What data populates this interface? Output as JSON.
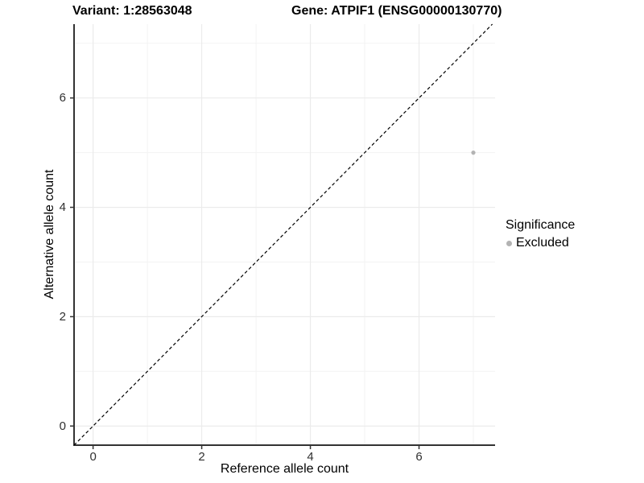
{
  "header": {
    "variant_title": "Variant: 1:28563048",
    "gene_title": "Gene: ATPIF1 (ENSG00000130770)"
  },
  "chart_data": {
    "type": "scatter",
    "title": "Variant: 1:28563048    Gene: ATPIF1 (ENSG00000130770)",
    "xlabel": "Reference allele count",
    "ylabel": "Alternative allele count",
    "xlim": [
      -0.35,
      7.4
    ],
    "ylim": [
      -0.35,
      7.35
    ],
    "x_major_ticks": [
      0,
      2,
      4,
      6
    ],
    "x_minor_ticks": [
      1,
      3,
      5,
      7
    ],
    "y_major_ticks": [
      0,
      2,
      4,
      6
    ],
    "y_minor_ticks": [
      1,
      3,
      5,
      7
    ],
    "grid": "major+minor",
    "series": [
      {
        "name": "Excluded",
        "color": "#b3b3b3",
        "marker_radius": 2.6,
        "points": [
          [
            7,
            5
          ]
        ]
      }
    ],
    "reference_line": {
      "type": "identity y=x",
      "dash": "dashed",
      "color": "#000000"
    },
    "legend": {
      "title": "Significance",
      "position": "right",
      "entries": [
        {
          "label": "Excluded",
          "color": "#b3b3b3"
        }
      ]
    }
  },
  "colors": {
    "background": "#ffffff",
    "grid_major": "#ebebeb",
    "grid_minor": "#f3f3f3",
    "axis_line": "#333333",
    "tick_text": "#303030",
    "point": "#b3b3b3",
    "reference_line": "#000000"
  }
}
